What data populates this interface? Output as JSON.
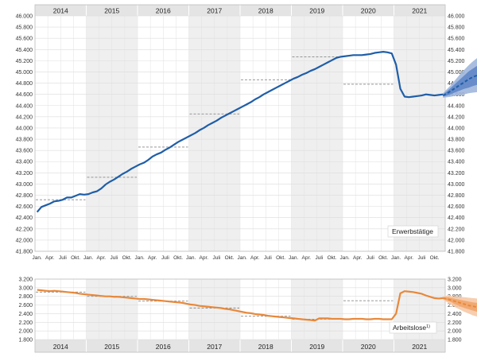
{
  "chart_data": [
    {
      "type": "line",
      "title": "",
      "label": "Erwerbstätige",
      "years": [
        "2014",
        "2015",
        "2016",
        "2017",
        "2018",
        "2019",
        "2020",
        "2021"
      ],
      "month_ticks": [
        "Jan.",
        "Apr.",
        "Juli",
        "Okt."
      ],
      "ylim": [
        41800,
        46000
      ],
      "yticks": [
        "41.800",
        "42.000",
        "42.200",
        "42.400",
        "42.600",
        "42.800",
        "43.000",
        "43.200",
        "43.400",
        "43.600",
        "43.800",
        "44.000",
        "44.200",
        "44.400",
        "44.600",
        "44.800",
        "45.000",
        "45.200",
        "45.400",
        "45.600",
        "45.800",
        "46.000"
      ],
      "grid": true,
      "colors": {
        "line": "#1f5ea8",
        "band_outer": "#9fb6dd",
        "band_inner": "#5f86c6",
        "annual_avg": "#8a8a8a"
      },
      "series": [
        {
          "values": [
            42500,
            42590,
            42620,
            42650,
            42690,
            42700,
            42720,
            42760,
            42760,
            42790,
            42820,
            42810,
            42820,
            42850,
            42870,
            42920,
            42990,
            43040,
            43080,
            43130,
            43180,
            43220,
            43270,
            43310,
            43350,
            43380,
            43430,
            43490,
            43530,
            43560,
            43610,
            43650,
            43700,
            43750,
            43790,
            43830,
            43870,
            43910,
            43960,
            44000,
            44050,
            44090,
            44130,
            44180,
            44220,
            44260,
            44300,
            44340,
            44380,
            44420,
            44460,
            44510,
            44550,
            44600,
            44640,
            44680,
            44720,
            44760,
            44800,
            44840,
            44880,
            44910,
            44950,
            44980,
            45020,
            45050,
            45090,
            45130,
            45170,
            45210,
            45250,
            45270,
            45280,
            45290,
            45300,
            45300,
            45300,
            45310,
            45320,
            45340,
            45350,
            45360,
            45350,
            45330,
            45130,
            44700,
            44560,
            44550,
            44560,
            44570,
            44580,
            44600,
            44590,
            44580,
            44590,
            44600
          ]
        }
      ],
      "annual_averages": [
        {
          "year": "2014",
          "value": 42720
        },
        {
          "year": "2015",
          "value": 43120
        },
        {
          "year": "2016",
          "value": 43660
        },
        {
          "year": "2017",
          "value": 44250
        },
        {
          "year": "2018",
          "value": 44860
        },
        {
          "year": "2019",
          "value": 45270
        },
        {
          "year": "2020",
          "value": 44780
        }
      ],
      "forecast": {
        "central": [
          44580,
          44620,
          44670,
          44720,
          44770,
          44820,
          44870,
          44910,
          44940,
          44970,
          45000
        ],
        "inner_low": [
          44560,
          44580,
          44610,
          44640,
          44670,
          44700,
          44720,
          44750,
          44770,
          44790,
          44810
        ],
        "inner_high": [
          44600,
          44660,
          44730,
          44800,
          44870,
          44940,
          45010,
          45060,
          45110,
          45150,
          45190
        ],
        "outer_low": [
          44540,
          44550,
          44560,
          44580,
          44590,
          44600,
          44620,
          44630,
          44640,
          44650,
          44660
        ],
        "outer_high": [
          44620,
          44700,
          44780,
          44870,
          44960,
          45040,
          45120,
          45190,
          45250,
          45300,
          45340
        ]
      }
    },
    {
      "type": "line",
      "title": "",
      "label": "Arbeitslose",
      "label_note": "1)",
      "years": [
        "2014",
        "2015",
        "2016",
        "2017",
        "2018",
        "2019",
        "2020",
        "2021"
      ],
      "ylim": [
        1800,
        3200
      ],
      "yticks": [
        "1.800",
        "2.000",
        "2.200",
        "2.400",
        "2.600",
        "2.800",
        "3.000",
        "3.200"
      ],
      "grid": true,
      "colors": {
        "line": "#e8883a",
        "band_outer": "#f6c9a6",
        "band_inner": "#f0a56c",
        "annual_avg": "#8a8a8a"
      },
      "series": [
        {
          "values": [
            2950,
            2940,
            2930,
            2920,
            2930,
            2920,
            2910,
            2900,
            2890,
            2880,
            2860,
            2850,
            2840,
            2830,
            2820,
            2810,
            2800,
            2800,
            2790,
            2790,
            2780,
            2770,
            2760,
            2750,
            2740,
            2740,
            2730,
            2720,
            2710,
            2700,
            2690,
            2680,
            2670,
            2660,
            2650,
            2630,
            2610,
            2600,
            2580,
            2570,
            2560,
            2550,
            2540,
            2530,
            2510,
            2500,
            2480,
            2460,
            2440,
            2420,
            2410,
            2390,
            2380,
            2370,
            2350,
            2340,
            2330,
            2320,
            2310,
            2300,
            2290,
            2280,
            2270,
            2260,
            2250,
            2240,
            2290,
            2290,
            2290,
            2280,
            2280,
            2280,
            2270,
            2270,
            2280,
            2280,
            2280,
            2270,
            2270,
            2280,
            2280,
            2270,
            2270,
            2270,
            2400,
            2870,
            2920,
            2910,
            2900,
            2880,
            2860,
            2820,
            2790,
            2760,
            2750,
            2760
          ]
        }
      ],
      "annual_averages": [
        {
          "year": "2014",
          "value": 2900
        },
        {
          "year": "2015",
          "value": 2800
        },
        {
          "year": "2016",
          "value": 2690
        },
        {
          "year": "2017",
          "value": 2530
        },
        {
          "year": "2018",
          "value": 2340
        },
        {
          "year": "2019",
          "value": 2270
        },
        {
          "year": "2020",
          "value": 2700
        }
      ],
      "forecast": {
        "central": [
          2760,
          2740,
          2710,
          2680,
          2650,
          2620,
          2590,
          2570,
          2550,
          2530,
          2510
        ],
        "inner_low": [
          2740,
          2700,
          2660,
          2610,
          2570,
          2530,
          2500,
          2470,
          2440,
          2420,
          2400
        ],
        "inner_high": [
          2780,
          2780,
          2760,
          2740,
          2720,
          2700,
          2680,
          2660,
          2650,
          2640,
          2630
        ],
        "outer_low": [
          2720,
          2660,
          2600,
          2540,
          2490,
          2440,
          2400,
          2360,
          2330,
          2300,
          2280
        ],
        "outer_high": [
          2800,
          2820,
          2810,
          2800,
          2790,
          2780,
          2770,
          2760,
          2750,
          2740,
          2730
        ]
      }
    }
  ]
}
